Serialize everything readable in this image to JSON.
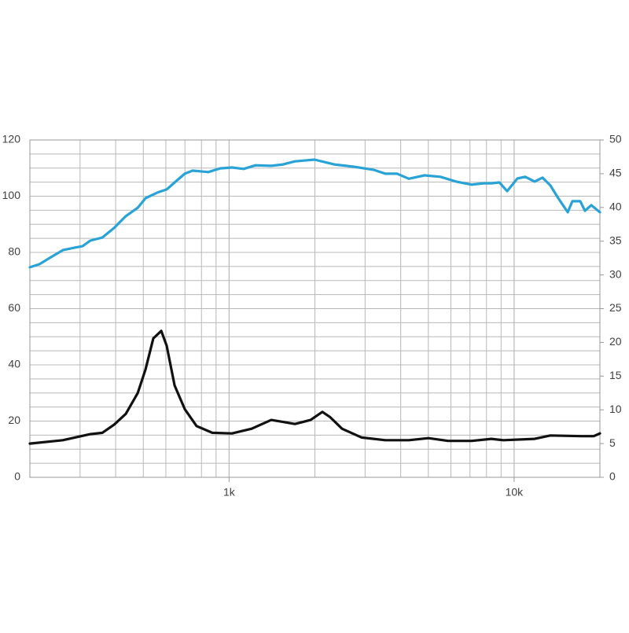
{
  "chart_data": {
    "type": "line",
    "log_x": true,
    "grid": true,
    "minor_grid": true,
    "xlim": [
      200,
      20000
    ],
    "xticks": [
      {
        "value": 1000,
        "label": "1k"
      },
      {
        "value": 10000,
        "label": "10k"
      }
    ],
    "ylim": [
      0,
      120
    ],
    "yticks": [
      0,
      20,
      40,
      60,
      80,
      100,
      120
    ],
    "y2lim": [
      0,
      50
    ],
    "y2ticks": [
      0,
      5,
      10,
      15,
      20,
      25,
      30,
      35,
      40,
      45,
      50
    ],
    "series": [
      {
        "color": "#29a3d6",
        "x": [
          200,
          216,
          237,
          261,
          287,
          306,
          326,
          359,
          395,
          434,
          478,
          509,
          560,
          604,
          644,
          699,
          745,
          846,
          930,
          1023,
          1125,
          1238,
          1406,
          1546,
          1702,
          1994,
          2337,
          2738,
          3210,
          3531,
          3884,
          4272,
          4850,
          5508,
          6254,
          7102,
          7812,
          8326,
          8874,
          9454,
          10264,
          10940,
          11804,
          12576,
          13404,
          14282,
          15420,
          16018,
          17062,
          17726,
          18652,
          20000
        ],
        "values": [
          74.7,
          75.8,
          78.3,
          80.8,
          81.7,
          82.2,
          84.2,
          85.3,
          88.7,
          92.9,
          95.9,
          99.3,
          101.3,
          102.4,
          104.9,
          108.0,
          109.1,
          108.6,
          109.9,
          110.2,
          109.7,
          111.0,
          110.8,
          111.3,
          112.4,
          113.0,
          111.3,
          110.5,
          109.4,
          108.0,
          108.0,
          106.2,
          107.4,
          106.9,
          105.2,
          104.1,
          104.6,
          104.6,
          104.9,
          101.8,
          106.3,
          106.9,
          105.2,
          106.6,
          103.8,
          99.3,
          94.3,
          98.2,
          98.2,
          94.8,
          96.8,
          94.3
        ]
      },
      {
        "color": "#111111",
        "axis": "y2",
        "x": [
          200,
          261,
          326,
          359,
          395,
          434,
          478,
          509,
          542,
          578,
          604,
          644,
          699,
          769,
          873,
          1023,
          1200,
          1406,
          1546,
          1702,
          1931,
          2124,
          2264,
          2490,
          2918,
          3531,
          4272,
          5006,
          5870,
          7102,
          8326,
          9157,
          11804,
          13404,
          17282,
          19008,
          20000
        ],
        "values": [
          5.0,
          5.5,
          6.4,
          6.6,
          7.8,
          9.4,
          12.5,
          16.0,
          20.6,
          21.7,
          19.5,
          13.6,
          10.1,
          7.6,
          6.6,
          6.5,
          7.2,
          8.5,
          8.2,
          7.9,
          8.5,
          9.7,
          8.9,
          7.2,
          5.9,
          5.5,
          5.5,
          5.8,
          5.4,
          5.4,
          5.7,
          5.5,
          5.7,
          6.2,
          6.1,
          6.1,
          6.5
        ]
      }
    ]
  }
}
